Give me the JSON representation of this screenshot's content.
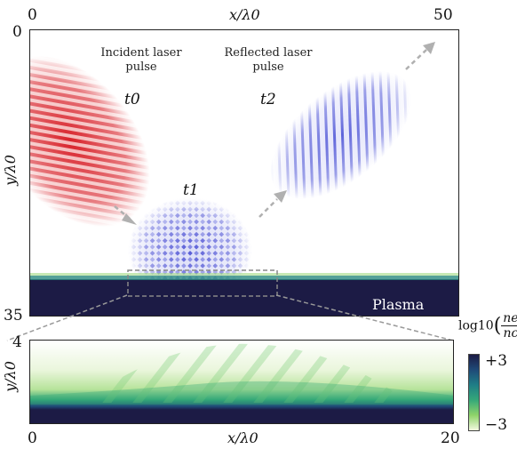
{
  "top_panel": {
    "x_axis_label": "x/λ0",
    "y_axis_label": "y/λ0",
    "x_tick_left": "0",
    "x_tick_right": "50",
    "y_tick_top": "0",
    "y_tick_bottom": "35",
    "annotation_incident": "Incident laser pulse",
    "annotation_reflected": "Reflected laser pulse",
    "time_labels": [
      "t0",
      "t1",
      "t2"
    ],
    "plasma_label": "Plasma"
  },
  "bottom_panel": {
    "x_axis_label": "x/λ0",
    "y_axis_label": "y/λ0",
    "x_tick_left": "0",
    "x_tick_right": "20",
    "y_tick_top": "4"
  },
  "colorbar": {
    "label_prefix": "log10",
    "label_num": "ne",
    "label_den": "nc",
    "tick_top": "+3",
    "tick_bottom": "−3",
    "colors": [
      "#1c1b45",
      "#1f4a78",
      "#1f7e86",
      "#35a879",
      "#8fd46a",
      "#f3f9e0"
    ]
  },
  "colors": {
    "incident": "#d8222a",
    "reflected": "#3a3fd0",
    "arrow": "#b0b0b0",
    "plasma": "#1c1b45"
  }
}
